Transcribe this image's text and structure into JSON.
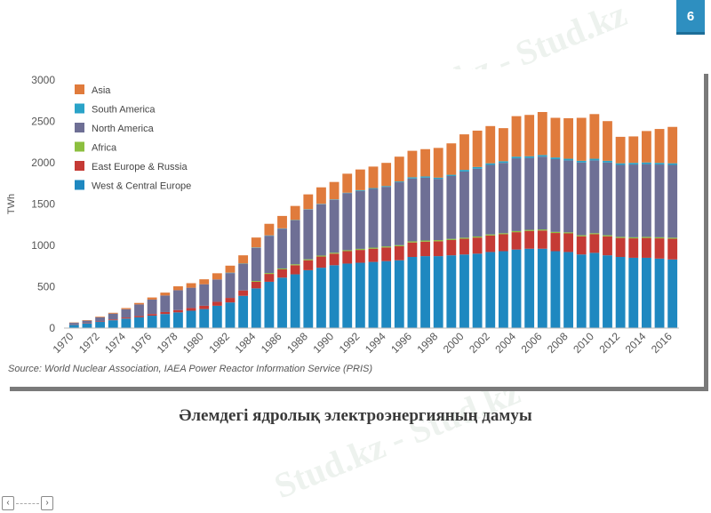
{
  "slide_number": "6",
  "caption": "Әлемдегі ядролық электроэнергияның дамуы",
  "watermark_text": "Stud.kz - Stud.kz",
  "nav": {
    "prev_label": "‹",
    "next_label": "›"
  },
  "chart_data": {
    "type": "bar",
    "stacked": true,
    "ylabel": "TWh",
    "ylim": [
      0,
      3000
    ],
    "yticks": [
      0,
      500,
      1000,
      1500,
      2000,
      2500,
      3000
    ],
    "grid": false,
    "legend_position": "top-left",
    "source": "Source: World Nuclear Association, IAEA Power Reactor Information Service (PRIS)",
    "categories": [
      "1970",
      "1971",
      "1972",
      "1973",
      "1974",
      "1975",
      "1976",
      "1977",
      "1978",
      "1979",
      "1980",
      "1981",
      "1982",
      "1983",
      "1984",
      "1985",
      "1986",
      "1987",
      "1988",
      "1989",
      "1990",
      "1991",
      "1992",
      "1993",
      "1994",
      "1995",
      "1996",
      "1997",
      "1998",
      "1999",
      "2000",
      "2001",
      "2002",
      "2003",
      "2004",
      "2005",
      "2006",
      "2007",
      "2008",
      "2009",
      "2010",
      "2011",
      "2012",
      "2013",
      "2014",
      "2015",
      "2016"
    ],
    "tick_labels": [
      "1970",
      "1972",
      "1974",
      "1976",
      "1978",
      "1980",
      "1982",
      "1984",
      "1986",
      "1988",
      "1990",
      "1992",
      "1994",
      "1996",
      "1998",
      "2000",
      "2002",
      "2004",
      "2006",
      "2008",
      "2010",
      "2012",
      "2014",
      "2016"
    ],
    "series": [
      {
        "name": "West & Central Europe",
        "color": "#1e88c0",
        "values": [
          40,
          55,
          75,
          95,
          115,
          130,
          150,
          170,
          190,
          210,
          230,
          270,
          310,
          390,
          480,
          560,
          610,
          650,
          700,
          730,
          760,
          780,
          790,
          800,
          810,
          820,
          860,
          870,
          870,
          880,
          890,
          900,
          920,
          930,
          950,
          960,
          960,
          930,
          920,
          890,
          910,
          880,
          860,
          850,
          850,
          840,
          830
        ]
      },
      {
        "name": "East Europe & Russia",
        "color": "#c53a35",
        "values": [
          4,
          5,
          7,
          10,
          13,
          16,
          20,
          24,
          28,
          33,
          40,
          48,
          55,
          65,
          80,
          95,
          100,
          110,
          120,
          135,
          140,
          150,
          155,
          160,
          165,
          170,
          175,
          175,
          180,
          185,
          190,
          195,
          200,
          205,
          210,
          215,
          220,
          220,
          225,
          220,
          225,
          230,
          230,
          235,
          240,
          245,
          250
        ]
      },
      {
        "name": "Africa",
        "color": "#8cbf3f",
        "values": [
          0,
          0,
          0,
          0,
          0,
          0,
          0,
          0,
          0,
          0,
          0,
          0,
          0,
          0,
          10,
          11,
          11,
          12,
          12,
          12,
          12,
          12,
          13,
          13,
          13,
          13,
          14,
          14,
          14,
          14,
          13,
          13,
          13,
          13,
          13,
          13,
          13,
          13,
          13,
          13,
          13,
          13,
          13,
          13,
          13,
          13,
          13
        ]
      },
      {
        "name": "North America",
        "color": "#6e6f95",
        "values": [
          20,
          30,
          48,
          70,
          100,
          140,
          175,
          200,
          240,
          245,
          260,
          270,
          300,
          320,
          400,
          450,
          480,
          530,
          600,
          620,
          640,
          690,
          700,
          710,
          720,
          760,
          760,
          760,
          740,
          760,
          800,
          820,
          840,
          850,
          880,
          870,
          880,
          880,
          870,
          880,
          880,
          880,
          870,
          880,
          880,
          880,
          880
        ]
      },
      {
        "name": "South America",
        "color": "#2aa3c8",
        "values": [
          0,
          0,
          0,
          0,
          0,
          0,
          0,
          0,
          0,
          0,
          0,
          0,
          5,
          5,
          5,
          5,
          5,
          5,
          5,
          5,
          5,
          5,
          10,
          10,
          10,
          10,
          15,
          15,
          15,
          15,
          20,
          20,
          20,
          20,
          20,
          20,
          20,
          20,
          20,
          20,
          20,
          20,
          20,
          20,
          20,
          20,
          20
        ]
      },
      {
        "name": "Asia",
        "color": "#e07b3c",
        "values": [
          4,
          6,
          8,
          10,
          14,
          18,
          25,
          35,
          47,
          55,
          60,
          75,
          85,
          100,
          120,
          140,
          150,
          170,
          180,
          200,
          210,
          230,
          250,
          260,
          280,
          300,
          320,
          330,
          360,
          380,
          430,
          440,
          450,
          400,
          490,
          500,
          520,
          480,
          490,
          520,
          540,
          480,
          320,
          320,
          380,
          410,
          440
        ]
      }
    ]
  }
}
